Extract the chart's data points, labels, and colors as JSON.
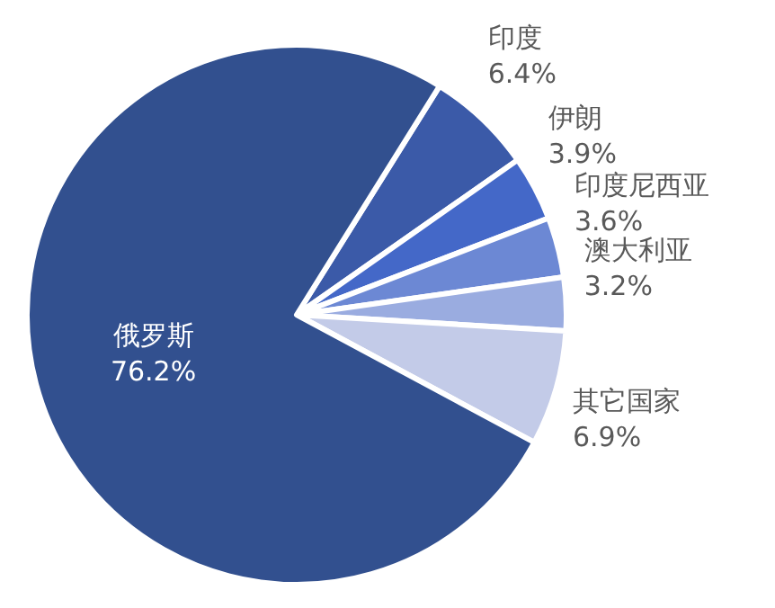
{
  "chart_data": {
    "type": "pie",
    "categories": [
      "印度",
      "伊朗",
      "印度尼西亚",
      "澳大利亚",
      "其它国家",
      "俄罗斯"
    ],
    "values": [
      6.4,
      3.9,
      3.6,
      3.2,
      6.9,
      76.2
    ],
    "value_labels": [
      "6.4%",
      "3.9%",
      "3.6%",
      "3.2%",
      "6.9%",
      "76.2%"
    ],
    "colors": [
      "#3b5aa8",
      "#4468c8",
      "#6c88d4",
      "#9aace0",
      "#c3cbe8",
      "#32508f"
    ]
  }
}
